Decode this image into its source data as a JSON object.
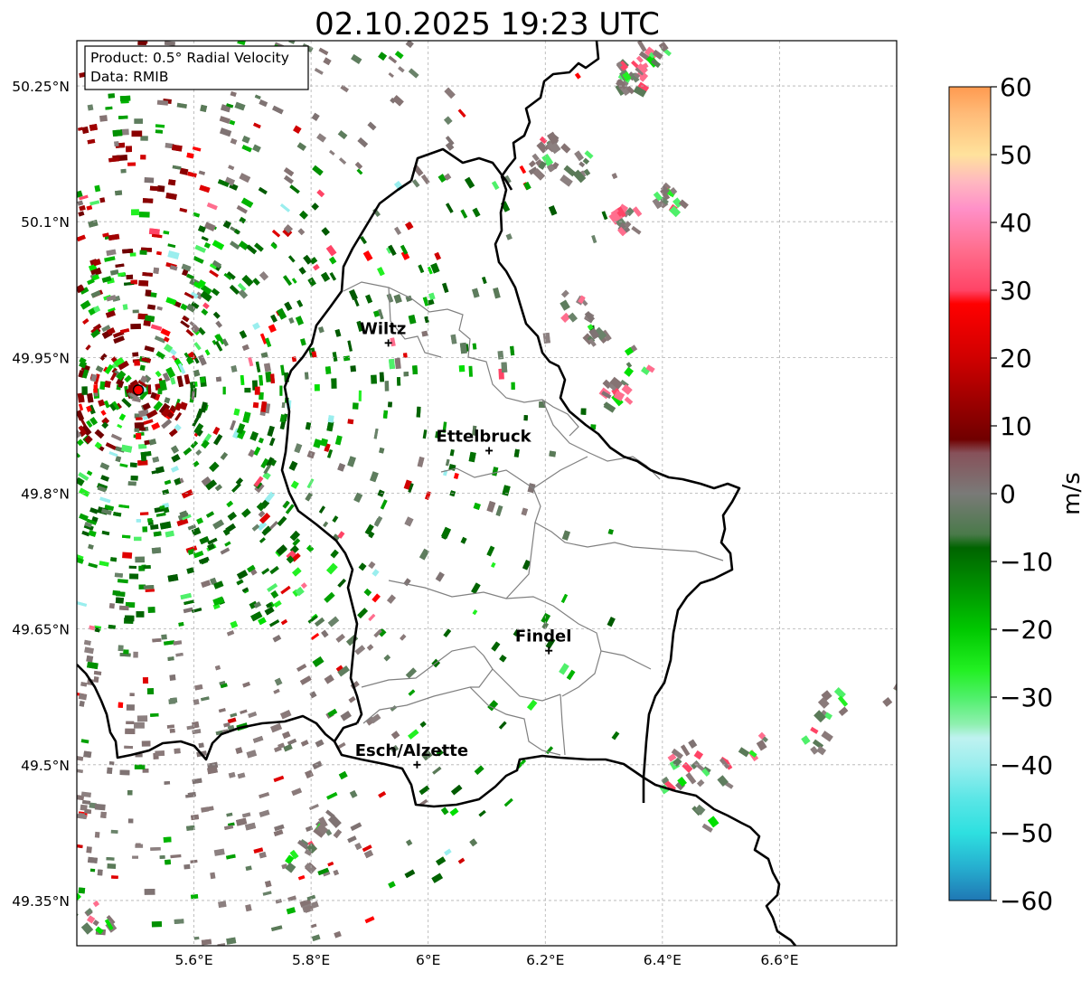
{
  "title": "02.10.2025 19:23 UTC",
  "info_box": {
    "product": "Product: 0.5° Radial Velocity",
    "source": "Data: RMIB"
  },
  "map": {
    "lon_range": [
      5.4,
      6.8
    ],
    "lat_range": [
      49.3,
      50.3
    ],
    "lon_ticks": [
      {
        "value": 5.6,
        "label": "5.6°E"
      },
      {
        "value": 5.8,
        "label": "5.8°E"
      },
      {
        "value": 6.0,
        "label": "6°E"
      },
      {
        "value": 6.2,
        "label": "6.2°E"
      },
      {
        "value": 6.4,
        "label": "6.4°E"
      },
      {
        "value": 6.6,
        "label": "6.6°E"
      }
    ],
    "lat_ticks": [
      {
        "value": 50.25,
        "label": "50.25°N"
      },
      {
        "value": 50.1,
        "label": "50.1°N"
      },
      {
        "value": 49.95,
        "label": "49.95°N"
      },
      {
        "value": 49.8,
        "label": "49.8°N"
      },
      {
        "value": 49.65,
        "label": "49.65°N"
      },
      {
        "value": 49.5,
        "label": "49.5°N"
      },
      {
        "value": 49.35,
        "label": "49.35°N"
      }
    ],
    "grid": true,
    "radar_site": {
      "lon": 5.505,
      "lat": 49.914,
      "color": "#ff0000"
    },
    "cities": [
      {
        "name": "Wiltz",
        "lon": 5.932,
        "lat": 49.966
      },
      {
        "name": "Ettelbruck",
        "lon": 6.104,
        "lat": 49.847
      },
      {
        "name": "Findel",
        "lon": 6.206,
        "lat": 49.626
      },
      {
        "name": "Esch/Alzette",
        "lon": 5.981,
        "lat": 49.5
      }
    ]
  },
  "colorbar": {
    "label": "m/s",
    "vmin": -60,
    "vmax": 60,
    "ticks": [
      {
        "value": 60,
        "label": "60"
      },
      {
        "value": 50,
        "label": "50"
      },
      {
        "value": 40,
        "label": "40"
      },
      {
        "value": 30,
        "label": "30"
      },
      {
        "value": 20,
        "label": "20"
      },
      {
        "value": 10,
        "label": "10"
      },
      {
        "value": 0,
        "label": "0"
      },
      {
        "value": -10,
        "label": "−10"
      },
      {
        "value": -20,
        "label": "−20"
      },
      {
        "value": -30,
        "label": "−30"
      },
      {
        "value": -40,
        "label": "−40"
      },
      {
        "value": -50,
        "label": "−50"
      },
      {
        "value": -60,
        "label": "−60"
      }
    ],
    "stops": [
      {
        "v": -60,
        "c": "#1f77b4"
      },
      {
        "v": -55,
        "c": "#26b0d0"
      },
      {
        "v": -50,
        "c": "#2ee0e0"
      },
      {
        "v": -45,
        "c": "#5ae6e6"
      },
      {
        "v": -40,
        "c": "#9aeeee"
      },
      {
        "v": -36,
        "c": "#bff2f0"
      },
      {
        "v": -34,
        "c": "#8ff0b0"
      },
      {
        "v": -30,
        "c": "#4ff06a"
      },
      {
        "v": -26,
        "c": "#22f022"
      },
      {
        "v": -20,
        "c": "#00c800"
      },
      {
        "v": -14,
        "c": "#009400"
      },
      {
        "v": -8,
        "c": "#006400"
      },
      {
        "v": -6,
        "c": "#4a7a4a"
      },
      {
        "v": 0,
        "c": "#7a7a78"
      },
      {
        "v": 6,
        "c": "#87515a"
      },
      {
        "v": 8,
        "c": "#700000"
      },
      {
        "v": 14,
        "c": "#a00000"
      },
      {
        "v": 20,
        "c": "#d00000"
      },
      {
        "v": 28,
        "c": "#ff0000"
      },
      {
        "v": 30,
        "c": "#ff4466"
      },
      {
        "v": 36,
        "c": "#ff6e8e"
      },
      {
        "v": 42,
        "c": "#ff90c8"
      },
      {
        "v": 46,
        "c": "#ffb8c0"
      },
      {
        "v": 50,
        "c": "#ffe29c"
      },
      {
        "v": 56,
        "c": "#ffbb78"
      },
      {
        "v": 60,
        "c": "#ff9a50"
      }
    ]
  }
}
